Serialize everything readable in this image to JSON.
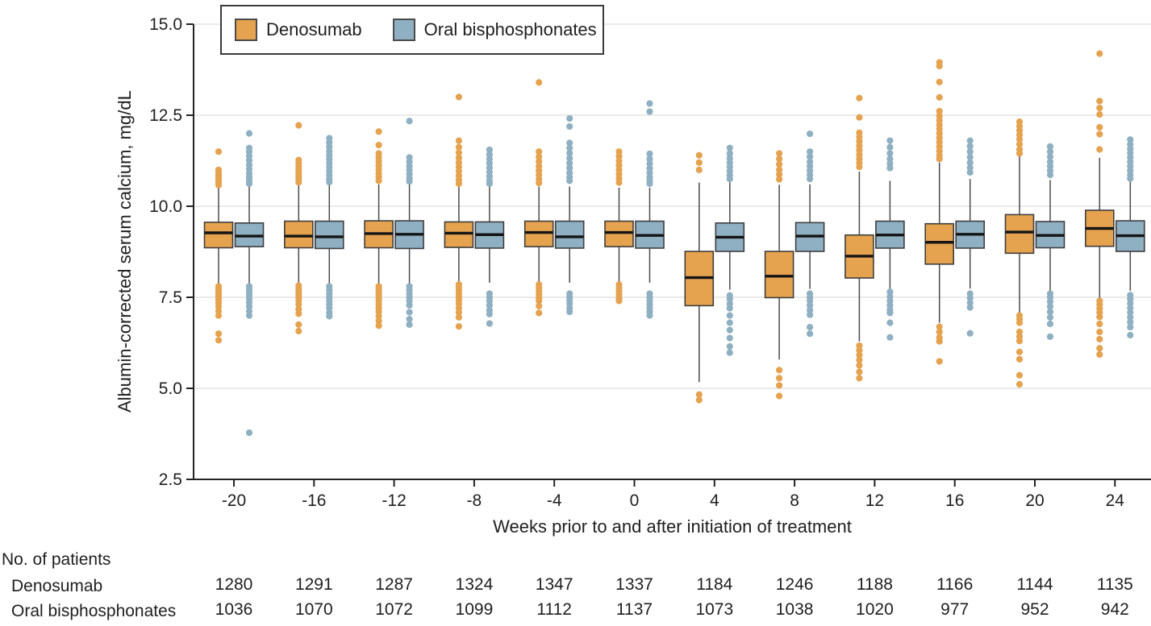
{
  "figure": {
    "colors": {
      "axis": "#222222",
      "grid": "#dedede",
      "box_stroke": "#3f3f3f",
      "median": "#151515",
      "text": "#1f1f1f"
    }
  },
  "chart_data": {
    "type": "boxplot",
    "title": "",
    "xlabel": "Weeks prior to and after initiation of treatment",
    "ylabel": "Albumin-corrected serum calcium, mg/dL",
    "ylim": [
      2.5,
      15.0
    ],
    "yticks": [
      15.0,
      12.5,
      10.0,
      7.5,
      5.0,
      2.5
    ],
    "grid": true,
    "legend_position": "top-left",
    "categories": [
      -20,
      -16,
      -12,
      -8,
      -4,
      0,
      4,
      8,
      12,
      16,
      20,
      24
    ],
    "series": [
      {
        "name": "Denosumab",
        "color": "#e5a24f",
        "q1": [
          8.86,
          8.86,
          8.86,
          8.87,
          8.89,
          8.89,
          7.27,
          7.49,
          8.03,
          8.41,
          8.71,
          8.9
        ],
        "median": [
          9.27,
          9.18,
          9.25,
          9.26,
          9.28,
          9.28,
          8.04,
          8.08,
          8.63,
          9.01,
          9.29,
          9.39
        ],
        "q3": [
          9.56,
          9.59,
          9.6,
          9.57,
          9.59,
          9.59,
          8.76,
          8.76,
          9.21,
          9.52,
          9.77,
          9.89
        ],
        "whisker_low": [
          7.88,
          7.87,
          7.87,
          7.9,
          7.9,
          7.9,
          5.17,
          5.79,
          6.29,
          6.8,
          7.07,
          7.45
        ],
        "whisker_high": [
          10.5,
          10.6,
          10.6,
          10.54,
          10.54,
          10.51,
          10.65,
          10.59,
          10.95,
          11.2,
          11.37,
          11.33
        ],
        "outliers_high": [
          [
            11.5,
            11.0,
            10.93,
            10.86,
            10.79,
            10.72,
            10.65,
            10.58
          ],
          [
            12.22,
            11.27,
            11.18,
            11.09,
            11.0,
            10.91,
            10.82,
            10.74,
            10.66
          ],
          [
            12.05,
            11.68,
            11.45,
            11.34,
            11.23,
            11.12,
            11.01,
            10.9,
            10.8,
            10.7
          ],
          [
            13.0,
            11.8,
            11.62,
            11.47,
            11.33,
            11.2,
            11.08,
            10.96,
            10.84,
            10.72,
            10.62
          ],
          [
            13.4,
            11.5,
            11.36,
            11.23,
            11.1,
            10.98,
            10.86,
            10.74,
            10.64
          ],
          [
            11.5,
            11.37,
            11.24,
            11.12,
            11.0,
            10.88,
            10.76,
            10.65
          ],
          [
            11.4,
            11.2,
            11.0
          ],
          [
            11.45,
            11.3,
            11.15,
            11.0,
            10.87,
            10.74
          ],
          [
            12.97,
            12.44,
            12.02,
            11.9,
            11.78,
            11.66,
            11.54,
            11.42,
            11.3,
            11.19,
            11.08
          ],
          [
            13.95,
            13.85,
            13.41,
            12.99,
            12.61,
            12.48,
            12.36,
            12.24,
            12.12,
            12.0,
            11.88,
            11.76,
            11.64,
            11.52,
            11.4,
            11.3
          ],
          [
            12.32,
            12.2,
            12.08,
            11.96,
            11.84,
            11.7,
            11.56,
            11.45
          ],
          [
            14.19,
            12.89,
            12.7,
            12.52,
            12.17,
            11.98,
            11.56
          ]
        ],
        "outliers_low": [
          [
            7.8,
            7.73,
            7.66,
            7.59,
            7.52,
            7.44,
            7.35,
            7.25,
            7.12,
            7.0,
            6.5,
            6.32
          ],
          [
            7.82,
            7.74,
            7.66,
            7.58,
            7.5,
            7.41,
            7.3,
            7.17,
            7.05,
            6.75,
            6.57
          ],
          [
            7.8,
            7.72,
            7.64,
            7.56,
            7.48,
            7.4,
            7.3,
            7.2,
            7.1,
            6.98,
            6.85,
            6.72
          ],
          [
            7.85,
            7.77,
            7.69,
            7.6,
            7.51,
            7.42,
            7.32,
            7.2,
            7.08,
            6.95,
            6.7
          ],
          [
            7.85,
            7.76,
            7.67,
            7.58,
            7.49,
            7.4,
            7.26,
            7.07
          ],
          [
            7.85,
            7.76,
            7.67,
            7.58,
            7.48,
            7.4
          ],
          [
            4.83,
            4.68
          ],
          [
            5.5,
            5.28,
            5.08,
            4.79
          ],
          [
            6.17,
            6.04,
            5.91,
            5.78,
            5.63,
            5.45,
            5.28
          ],
          [
            6.69,
            6.55,
            6.4,
            6.29,
            5.74
          ],
          [
            7.0,
            6.9,
            6.8,
            6.55,
            6.42,
            6.3,
            6.0,
            5.8,
            5.36,
            5.11
          ],
          [
            7.4,
            7.3,
            7.19,
            7.08,
            6.96,
            6.77,
            6.55,
            6.35,
            6.1,
            5.93
          ]
        ]
      },
      {
        "name": "Oral bisphosphonates",
        "color": "#8fafc2",
        "q1": [
          8.89,
          8.84,
          8.84,
          8.85,
          8.85,
          8.85,
          8.76,
          8.76,
          8.85,
          8.85,
          8.86,
          8.76
        ],
        "median": [
          9.18,
          9.16,
          9.23,
          9.22,
          9.16,
          9.2,
          9.15,
          9.18,
          9.21,
          9.23,
          9.2,
          9.19
        ],
        "q3": [
          9.54,
          9.59,
          9.6,
          9.57,
          9.59,
          9.59,
          9.54,
          9.55,
          9.59,
          9.59,
          9.58,
          9.6
        ],
        "whisker_low": [
          7.88,
          7.87,
          7.87,
          7.9,
          7.9,
          7.9,
          7.71,
          7.73,
          7.74,
          7.74,
          7.68,
          7.68
        ],
        "whisker_high": [
          10.54,
          10.6,
          10.6,
          10.54,
          10.54,
          10.51,
          10.66,
          10.6,
          10.7,
          10.75,
          10.72,
          10.68
        ],
        "outliers_high": [
          [
            12.0,
            11.6,
            11.5,
            11.38,
            11.26,
            11.14,
            11.02,
            10.9,
            10.8,
            10.7,
            10.62
          ],
          [
            11.87,
            11.75,
            11.63,
            11.51,
            11.4,
            11.29,
            11.18,
            11.07,
            10.96,
            10.85,
            10.74,
            10.66
          ],
          [
            12.34,
            11.34,
            11.22,
            11.1,
            10.99,
            10.88,
            10.77,
            10.68
          ],
          [
            11.55,
            11.42,
            11.3,
            11.18,
            11.06,
            10.94,
            10.82,
            10.7,
            10.62
          ],
          [
            12.41,
            12.19,
            11.74,
            11.6,
            11.46,
            11.32,
            11.18,
            11.05,
            10.92,
            10.8,
            10.7
          ],
          [
            12.82,
            12.6,
            11.44,
            11.3,
            11.17,
            11.04,
            10.92,
            10.8,
            10.7,
            10.62
          ],
          [
            11.6,
            11.45,
            11.32,
            11.2,
            11.08,
            10.96,
            10.85,
            10.75
          ],
          [
            11.99,
            11.5,
            11.36,
            11.22,
            11.1,
            10.98,
            10.86,
            10.75
          ],
          [
            11.8,
            11.62,
            11.45,
            11.3,
            11.17,
            11.05
          ],
          [
            11.8,
            11.65,
            11.5,
            11.35,
            11.2,
            11.06,
            10.93
          ],
          [
            11.64,
            11.5,
            11.36,
            11.22,
            11.1,
            10.98,
            10.86
          ],
          [
            11.83,
            11.7,
            11.58,
            11.46,
            11.34,
            11.22,
            11.1,
            10.98,
            10.86,
            10.76
          ]
        ],
        "outliers_low": [
          [
            7.8,
            7.72,
            7.64,
            7.55,
            7.45,
            7.35,
            7.25,
            7.12,
            7.0,
            3.78
          ],
          [
            7.8,
            7.7,
            7.6,
            7.5,
            7.4,
            7.3,
            7.2,
            7.08,
            6.98
          ],
          [
            7.8,
            7.7,
            7.6,
            7.5,
            7.4,
            7.28,
            7.09,
            6.9,
            6.75
          ],
          [
            7.6,
            7.5,
            7.4,
            7.28,
            7.15,
            7.04,
            6.78
          ],
          [
            7.6,
            7.51,
            7.42,
            7.32,
            7.2,
            7.1
          ],
          [
            7.6,
            7.5,
            7.4,
            7.3,
            7.2,
            7.1,
            7.0
          ],
          [
            7.55,
            7.45,
            7.32,
            7.2,
            7.0,
            6.8,
            6.6,
            6.38,
            6.15,
            5.98
          ],
          [
            7.6,
            7.5,
            7.4,
            7.28,
            7.15,
            7.02,
            6.68,
            6.5
          ],
          [
            7.65,
            7.52,
            7.4,
            7.28,
            7.16,
            7.07,
            6.8,
            6.4
          ],
          [
            7.6,
            7.48,
            7.35,
            7.22,
            6.51
          ],
          [
            7.6,
            7.5,
            7.38,
            7.25,
            7.1,
            6.95,
            6.77,
            6.42
          ],
          [
            7.56,
            7.45,
            7.33,
            7.2,
            7.08,
            6.95,
            6.82,
            6.68,
            6.46
          ]
        ]
      }
    ]
  },
  "patients_table": {
    "heading": "No. of patients",
    "rows": [
      {
        "label": "Denosumab",
        "values": [
          1280,
          1291,
          1287,
          1324,
          1347,
          1337,
          1184,
          1246,
          1188,
          1166,
          1144,
          1135
        ]
      },
      {
        "label": "Oral bisphosphonates",
        "values": [
          1036,
          1070,
          1072,
          1099,
          1112,
          1137,
          1073,
          1038,
          1020,
          977,
          952,
          942
        ]
      }
    ]
  }
}
